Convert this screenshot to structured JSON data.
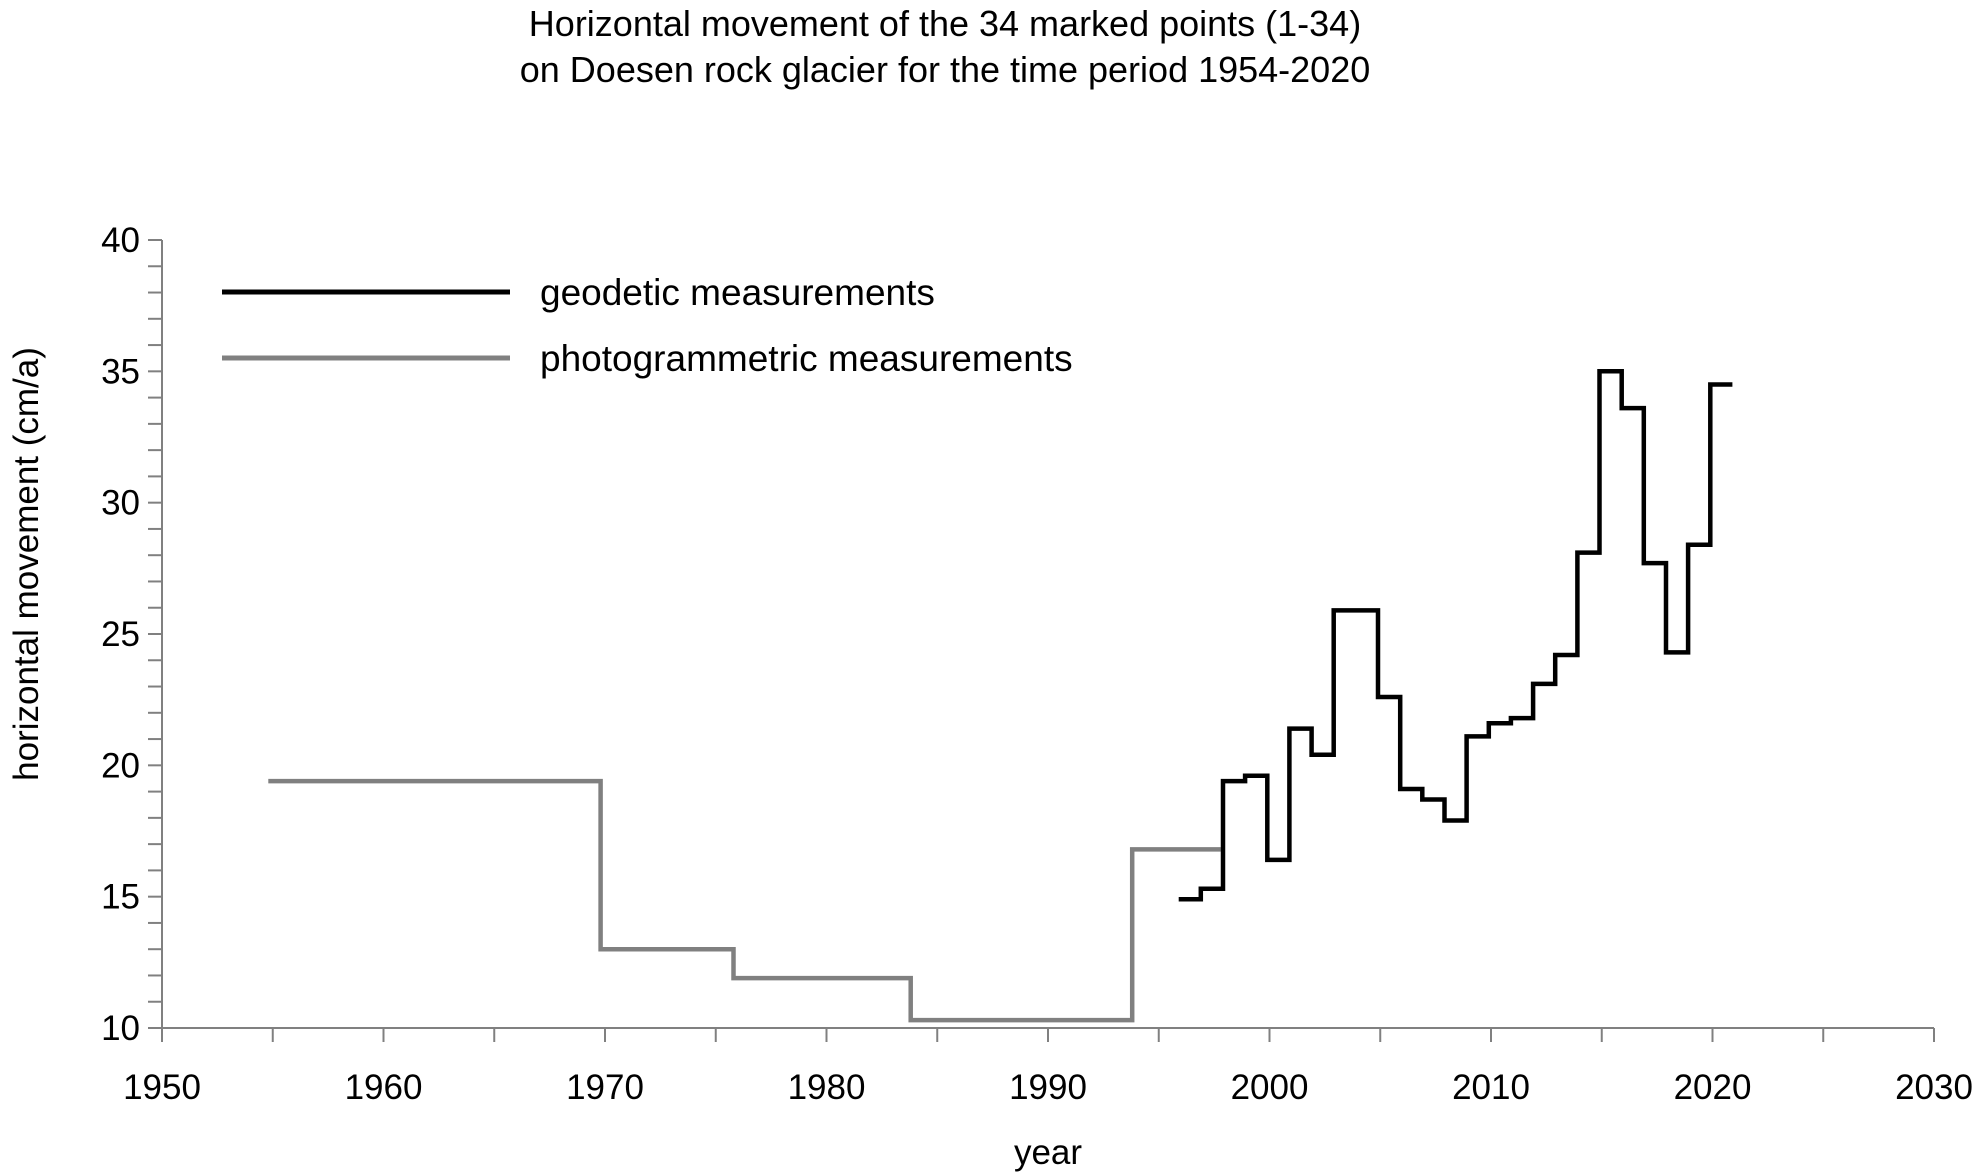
{
  "chart_data": {
    "type": "line",
    "title_lines": [
      "Horizontal movement of the 34 marked points (1-34)",
      "on Doesen rock glacier for the time period 1954-2020"
    ],
    "xlabel": "year",
    "ylabel": "horizontal movement (cm/a)",
    "xlim": [
      1950,
      2030
    ],
    "ylim": [
      10,
      40
    ],
    "x_ticks": [
      "1950",
      "1960",
      "1970",
      "1980",
      "1990",
      "2000",
      "2010",
      "2020",
      "2030"
    ],
    "y_ticks": [
      "10",
      "15",
      "20",
      "25",
      "30",
      "35",
      "40"
    ],
    "x_minor_step": 5,
    "y_minor_step": 1,
    "grid": false,
    "legend_position": "top-left",
    "series": [
      {
        "name": "geodetic measurements",
        "color": "#000000",
        "style": "step",
        "steps": [
          {
            "start": 1995.9,
            "end": 1996.9,
            "value": 14.9
          },
          {
            "start": 1996.9,
            "end": 1997.9,
            "value": 15.3
          },
          {
            "start": 1997.9,
            "end": 1998.9,
            "value": 19.4
          },
          {
            "start": 1998.9,
            "end": 1999.9,
            "value": 19.6
          },
          {
            "start": 1999.9,
            "end": 2000.9,
            "value": 16.4
          },
          {
            "start": 2000.9,
            "end": 2001.9,
            "value": 21.4
          },
          {
            "start": 2001.9,
            "end": 2002.9,
            "value": 20.4
          },
          {
            "start": 2002.9,
            "end": 2004.9,
            "value": 25.9
          },
          {
            "start": 2004.9,
            "end": 2005.9,
            "value": 22.6
          },
          {
            "start": 2005.9,
            "end": 2006.9,
            "value": 19.1
          },
          {
            "start": 2006.9,
            "end": 2007.9,
            "value": 18.7
          },
          {
            "start": 2007.9,
            "end": 2008.9,
            "value": 17.9
          },
          {
            "start": 2008.9,
            "end": 2009.9,
            "value": 21.1
          },
          {
            "start": 2009.9,
            "end": 2010.9,
            "value": 21.6
          },
          {
            "start": 2010.9,
            "end": 2011.9,
            "value": 21.8
          },
          {
            "start": 2011.9,
            "end": 2012.9,
            "value": 23.1
          },
          {
            "start": 2012.9,
            "end": 2013.9,
            "value": 24.2
          },
          {
            "start": 2013.9,
            "end": 2014.9,
            "value": 28.1
          },
          {
            "start": 2014.9,
            "end": 2015.9,
            "value": 35.0
          },
          {
            "start": 2015.9,
            "end": 2016.9,
            "value": 33.6
          },
          {
            "start": 2016.9,
            "end": 2017.9,
            "value": 27.7
          },
          {
            "start": 2017.9,
            "end": 2018.9,
            "value": 24.3
          },
          {
            "start": 2018.9,
            "end": 2019.9,
            "value": 28.4
          },
          {
            "start": 2019.9,
            "end": 2020.9,
            "value": 34.5
          }
        ]
      },
      {
        "name": "photogrammetric measurements",
        "color": "#808080",
        "style": "step",
        "steps": [
          {
            "start": 1954.8,
            "end": 1969.8,
            "value": 19.4
          },
          {
            "start": 1969.8,
            "end": 1975.8,
            "value": 13.0
          },
          {
            "start": 1975.8,
            "end": 1983.8,
            "value": 11.9
          },
          {
            "start": 1983.8,
            "end": 1993.8,
            "value": 10.3
          },
          {
            "start": 1993.8,
            "end": 1997.8,
            "value": 16.8
          }
        ]
      }
    ]
  }
}
